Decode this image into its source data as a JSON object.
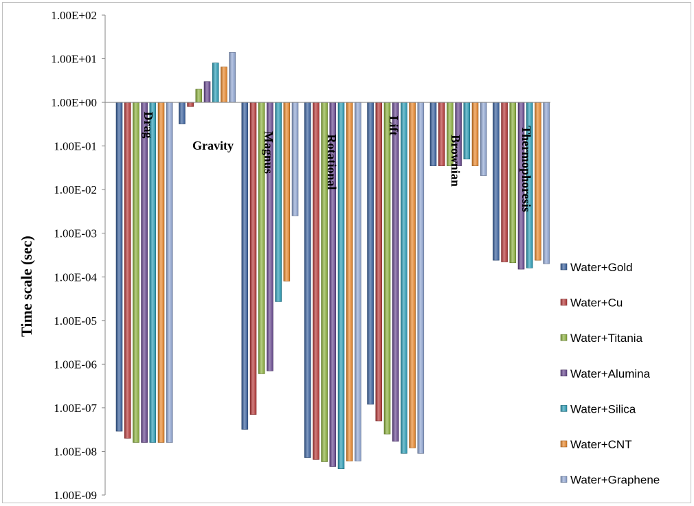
{
  "chart_data": {
    "type": "bar",
    "title": "",
    "xlabel": "",
    "ylabel": "Time scale (sec)",
    "yscale": "log",
    "ylim": [
      1e-09,
      100
    ],
    "baseline": 1,
    "grid": false,
    "legend_position": "right",
    "yticks": [
      "1.00E+02",
      "1.00E+01",
      "1.00E+00",
      "1.00E-01",
      "1.00E-02",
      "1.00E-03",
      "1.00E-04",
      "1.00E-05",
      "1.00E-06",
      "1.00E-07",
      "1.00E-08",
      "1.00E-09"
    ],
    "categories": [
      "Drag",
      "Gravity",
      "Magnus",
      "Rotational",
      "Lift",
      "Brownian",
      "Thermophoresis"
    ],
    "series": [
      {
        "name": "Water+Gold",
        "color": "#3a62a0",
        "values": [
          2.9e-08,
          0.32,
          3.2e-08,
          7.2e-09,
          1.2e-07,
          0.035,
          0.00024
        ]
      },
      {
        "name": "Water+Cu",
        "color": "#b83a3a",
        "values": [
          2e-08,
          0.8,
          7e-08,
          6.5e-09,
          5e-08,
          0.035,
          0.00022
        ]
      },
      {
        "name": "Water+Titania",
        "color": "#8db23e",
        "values": [
          1.6e-08,
          2.0,
          6e-07,
          5.8e-09,
          2.5e-08,
          0.035,
          0.00021
        ]
      },
      {
        "name": "Water+Alumina",
        "color": "#6a4a92",
        "values": [
          1.6e-08,
          3.0,
          7e-07,
          4.5e-09,
          1.7e-08,
          0.035,
          0.00015
        ]
      },
      {
        "name": "Water+Silica",
        "color": "#2c9fb8",
        "values": [
          1.6e-08,
          8.0,
          2.7e-05,
          4e-09,
          9e-09,
          0.05,
          0.00016
        ]
      },
      {
        "name": "Water+CNT",
        "color": "#ec8a2d",
        "values": [
          1.6e-08,
          6.5,
          8e-05,
          6e-09,
          1.2e-08,
          0.035,
          0.00024
        ]
      },
      {
        "name": "Water+Graphene",
        "color": "#93a9d6",
        "values": [
          1.6e-08,
          14.0,
          0.0025,
          6e-09,
          9e-09,
          0.021,
          0.0002
        ]
      }
    ]
  }
}
